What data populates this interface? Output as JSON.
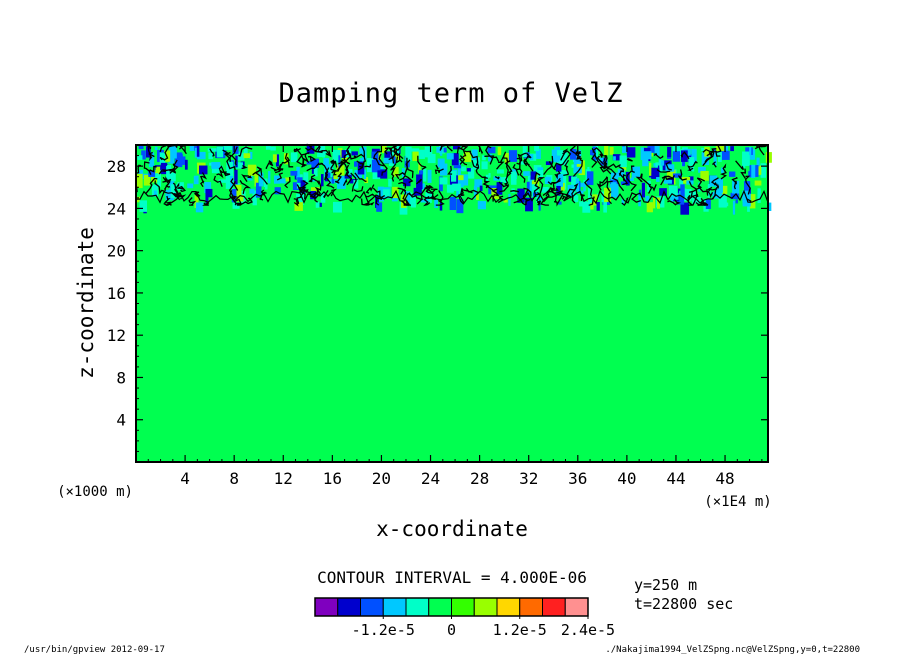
{
  "chart_data": {
    "type": "heatmap",
    "title": "Damping term of VelZ",
    "xlabel": "x-coordinate",
    "ylabel": "z-coordinate",
    "x_unit_left": "(×1000 m)",
    "x_unit_right": "(×1E4 m)",
    "xlim": [
      0,
      51.5
    ],
    "ylim": [
      0,
      30
    ],
    "x_ticks": [
      4,
      8,
      12,
      16,
      20,
      24,
      28,
      32,
      36,
      40,
      44,
      48
    ],
    "y_ticks": [
      4,
      8,
      12,
      16,
      20,
      24,
      28
    ],
    "contour_interval": "CONTOUR INTERVAL = 4.000E-06",
    "background_value": 0,
    "damping_layer_zlim": [
      24.5,
      30
    ],
    "colorbar": {
      "levels": [
        -2.4e-05,
        -2e-05,
        -1.6e-05,
        -1.2e-05,
        -8e-06,
        -4e-06,
        0,
        4e-06,
        8e-06,
        1.2e-05,
        1.6e-05,
        2e-05,
        2.4e-05
      ],
      "colors": [
        "#7f00bf",
        "#0000cd",
        "#0050ff",
        "#00c8ff",
        "#00ffc8",
        "#00ff50",
        "#33ff00",
        "#99ff00",
        "#ffd700",
        "#ff6a00",
        "#ff2020",
        "#ff9090"
      ],
      "tick_labels": [
        "-1.2e-5",
        "0",
        "1.2e-5",
        "2.4e-5"
      ]
    },
    "grid": false
  },
  "info": {
    "y_slice": "y=250 m",
    "time": "t=22800 sec"
  },
  "footer": {
    "left": "/usr/bin/gpview   2012-09-17",
    "right": "./Nakajima1994_VelZSpng.nc@VelZSpng,y=0,t=22800"
  }
}
